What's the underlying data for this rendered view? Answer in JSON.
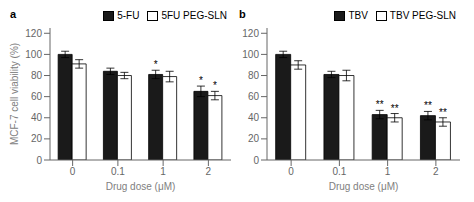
{
  "chart_data": [
    {
      "type": "bar",
      "title": "a",
      "categories": [
        "0",
        "0.1",
        "1",
        "2"
      ],
      "series": [
        {
          "name": "5-FU",
          "color": "#1a1a1a",
          "values": [
            100,
            84,
            81,
            65
          ],
          "errors": [
            3,
            3,
            4,
            5
          ]
        },
        {
          "name": "5FU PEG-SLN",
          "color": "#ffffff",
          "values": [
            91,
            80,
            79,
            61
          ],
          "errors": [
            4,
            3,
            5,
            4
          ]
        }
      ],
      "x_label": "Drug dose (μM)",
      "y_label": "MCF-7 cell viability (%)",
      "ylim": [
        0,
        125
      ],
      "yticks": [
        0,
        20,
        40,
        60,
        80,
        100,
        120
      ],
      "legend": "upper right",
      "annotations": [
        {
          "text": "*",
          "category": "1",
          "series": "5-FU"
        },
        {
          "text": "*",
          "category": "2",
          "series": "5-FU"
        },
        {
          "text": "*",
          "category": "2",
          "series": "5FU PEG-SLN"
        }
      ]
    },
    {
      "type": "bar",
      "title": "b",
      "categories": [
        "0",
        "0.1",
        "1",
        "2"
      ],
      "series": [
        {
          "name": "TBV",
          "color": "#1a1a1a",
          "values": [
            100,
            81,
            43,
            42
          ],
          "errors": [
            3,
            3,
            4,
            4
          ]
        },
        {
          "name": "TBV PEG-SLN",
          "color": "#ffffff",
          "values": [
            90,
            80,
            40,
            36
          ],
          "errors": [
            4,
            5,
            4,
            4
          ]
        }
      ],
      "x_label": "Drug dose (μM)",
      "ylim": [
        0,
        125
      ],
      "yticks": [
        0,
        20,
        40,
        60,
        80,
        100,
        120
      ],
      "legend": "upper right",
      "annotations": [
        {
          "text": "**",
          "category": "1",
          "series": "TBV"
        },
        {
          "text": "**",
          "category": "1",
          "series": "TBV PEG-SLN"
        },
        {
          "text": "**",
          "category": "2",
          "series": "TBV"
        },
        {
          "text": "**",
          "category": "2",
          "series": "TBV PEG-SLN"
        }
      ]
    }
  ]
}
